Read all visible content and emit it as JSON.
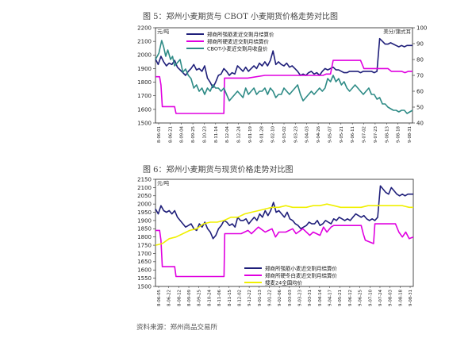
{
  "figure1": {
    "title": "图 5：郑州小麦期货与 CBOT 小麦期货价格走势对比图"
  },
  "figure2": {
    "title": "图 6：郑州小麦期货与现货价格走势对比图"
  },
  "source": "资料来源：郑州商品交易所",
  "chart_data": [
    {
      "type": "line",
      "title": "图 5：郑州小麦期货与 CBOT 小麦期货价格走势对比图",
      "y_unit": "元/吨",
      "y2_unit": "美分/蒲式耳",
      "ylim": [
        1500,
        2200
      ],
      "yticks": [
        1500,
        1600,
        1700,
        1800,
        1900,
        2000,
        2100,
        2200
      ],
      "y2lim": [
        40,
        100
      ],
      "y2ticks": [
        40,
        50,
        60,
        70,
        80,
        90,
        100
      ],
      "grid": false,
      "legend_position": "top-center",
      "x_labels": [
        "8-06-01",
        "8-06-21",
        "8-09-04",
        "8-09-25",
        "8-10-23",
        "8-11-14",
        "8-12-04",
        "8-12-24",
        "9-01-19",
        "9-01-28",
        "9-02-10",
        "9-03-02",
        "9-03-23",
        "9-04-03",
        "9-04-26",
        "9-05-07",
        "9-05-21",
        "9-06-11",
        "9-07-02",
        "9-07-23",
        "9-08-13",
        "9-08-18",
        "9-08-31"
      ],
      "series": [
        {
          "name": "郑商所强筋麦近交割月结算价",
          "axis": "left",
          "color": "#1f1f7a",
          "x": [
            0,
            4,
            8,
            12,
            16,
            20,
            24,
            28,
            32,
            36,
            40,
            44,
            48,
            52,
            56,
            60,
            64,
            68,
            72,
            76,
            80,
            84,
            88,
            92,
            96,
            100,
            104,
            108,
            112,
            116,
            120,
            124,
            128,
            132,
            136,
            140,
            144,
            148,
            152,
            156,
            160,
            164,
            168,
            172,
            176,
            180,
            184,
            188,
            192,
            196,
            200,
            204,
            208,
            212,
            216,
            220,
            224,
            228,
            232,
            236,
            240,
            244,
            248,
            252,
            256,
            260,
            264,
            268,
            272,
            276,
            280,
            284,
            288,
            292,
            296,
            300,
            304,
            308,
            312,
            316,
            320,
            324,
            328,
            332,
            336,
            340,
            344,
            348,
            352,
            356,
            360,
            364,
            368,
            372,
            376
          ],
          "values": [
            1970,
            1930,
            1990,
            1950,
            1920,
            1940,
            1930,
            1960,
            1910,
            1890,
            1870,
            1850,
            1880,
            1900,
            1930,
            1890,
            1900,
            1880,
            1920,
            1830,
            1800,
            1760,
            1800,
            1850,
            1860,
            1900,
            1880,
            1850,
            1870,
            1860,
            1920,
            1900,
            1880,
            1910,
            1880,
            1900,
            1920,
            1900,
            1940,
            1920,
            1950,
            1920,
            1960,
            2030,
            1930,
            1950,
            1930,
            1920,
            1940,
            1910,
            1920,
            1900,
            1880,
            1850,
            1860,
            1850,
            1870,
            1880,
            1860,
            1870,
            1850,
            1880,
            1900,
            1890,
            1900,
            1910,
            1890,
            1890,
            1880,
            1870,
            1870,
            1880,
            1880,
            1880,
            1880,
            1870,
            1880,
            1880,
            1880,
            1880,
            1870,
            1880,
            2120,
            2100,
            2080,
            2080,
            2090,
            2080,
            2070,
            2060,
            2070,
            2060,
            2070,
            2070,
            2070
          ]
        },
        {
          "name": "郑商所硬麦近交割月结算价",
          "axis": "left",
          "color": "#e000e0",
          "x": [
            0,
            6,
            8,
            10,
            14,
            28,
            30,
            45,
            60,
            75,
            90,
            100,
            101,
            115,
            125,
            130,
            135,
            160,
            175,
            190,
            205,
            215,
            225,
            230,
            240,
            245,
            250,
            256,
            260,
            270,
            285,
            290,
            300,
            305,
            310,
            320,
            340,
            345,
            350,
            355,
            360,
            365,
            370,
            376
          ],
          "values": [
            1840,
            1840,
            1780,
            1620,
            1620,
            1620,
            1570,
            1570,
            1570,
            1570,
            1570,
            1570,
            1830,
            1830,
            1830,
            1830,
            1830,
            1850,
            1850,
            1850,
            1850,
            1850,
            1850,
            1850,
            1850,
            1850,
            1860,
            1860,
            1960,
            1960,
            1960,
            1960,
            1960,
            1900,
            1900,
            1900,
            1900,
            1880,
            1880,
            1880,
            1880,
            1870,
            1880,
            1880
          ]
        },
        {
          "name": "CBOT小麦近交割月收盘价",
          "axis": "right",
          "color": "#2e8b86",
          "x": [
            0,
            5,
            9,
            12,
            15,
            18,
            22,
            25,
            28,
            32,
            36,
            40,
            44,
            48,
            52,
            56,
            60,
            64,
            68,
            72,
            76,
            80,
            84,
            88,
            92,
            96,
            100,
            104,
            108,
            112,
            116,
            120,
            124,
            128,
            132,
            136,
            140,
            144,
            148,
            152,
            156,
            160,
            164,
            168,
            172,
            176,
            180,
            184,
            188,
            192,
            196,
            200,
            204,
            208,
            212,
            216,
            220,
            224,
            228,
            232,
            236,
            240,
            244,
            248,
            252,
            256,
            260,
            264,
            268,
            272,
            276,
            280,
            284,
            288,
            292,
            296,
            300,
            304,
            308,
            312,
            316,
            320,
            324,
            328,
            332,
            336,
            340,
            344,
            348,
            352,
            356,
            360,
            364,
            368,
            372,
            376
          ],
          "values": [
            80,
            84,
            92,
            88,
            82,
            86,
            80,
            82,
            76,
            78,
            80,
            72,
            74,
            70,
            68,
            62,
            64,
            60,
            62,
            58,
            62,
            60,
            64,
            62,
            62,
            60,
            62,
            58,
            54,
            56,
            58,
            60,
            58,
            56,
            62,
            58,
            60,
            62,
            58,
            60,
            60,
            62,
            58,
            62,
            60,
            56,
            58,
            58,
            62,
            60,
            58,
            60,
            62,
            64,
            58,
            54,
            56,
            58,
            60,
            58,
            60,
            62,
            60,
            62,
            68,
            66,
            70,
            66,
            68,
            64,
            66,
            62,
            60,
            62,
            64,
            62,
            60,
            58,
            60,
            62,
            58,
            58,
            55,
            56,
            52,
            52,
            50,
            49,
            48,
            48,
            47,
            48,
            48,
            46,
            47,
            48
          ]
        }
      ]
    },
    {
      "type": "line",
      "title": "图 6：郑州小麦期货与现货价格走势对比图",
      "y_unit": "元/吨",
      "ylim": [
        1500,
        2150
      ],
      "yticks": [
        1500,
        1550,
        1600,
        1650,
        1700,
        1750,
        1800,
        1850,
        1900,
        1950,
        2000,
        2050,
        2100,
        2150
      ],
      "grid": false,
      "legend_position": "bottom-right",
      "x_labels": [
        "8-06-05",
        "8-06-22",
        "8-08-12",
        "8-09-09",
        "8-09-25",
        "8-10-24",
        "8-11-06",
        "8-11-15",
        "8-12-02",
        "9-12-22",
        "9-01-13",
        "9-01-22",
        "9-02-06",
        "9-03-03",
        "9-03-23",
        "9-03-31",
        "9-04-14",
        "9-04-17",
        "9-05-21",
        "9-06-12",
        "9-06-25",
        "9-07-10",
        "9-07-24",
        "9-08-03",
        "9-08-18",
        "9-08-31"
      ],
      "series": [
        {
          "name": "郑商所强筋小麦近交割月结算价",
          "color": "#1f1f7a",
          "x": [
            0,
            4,
            8,
            12,
            16,
            20,
            24,
            28,
            32,
            36,
            40,
            44,
            48,
            52,
            56,
            60,
            64,
            68,
            72,
            76,
            80,
            84,
            88,
            92,
            96,
            100,
            104,
            108,
            112,
            116,
            120,
            124,
            128,
            132,
            136,
            140,
            144,
            148,
            152,
            156,
            160,
            164,
            168,
            172,
            176,
            180,
            184,
            188,
            192,
            196,
            200,
            204,
            208,
            212,
            216,
            220,
            224,
            228,
            232,
            236,
            240,
            244,
            248,
            252,
            256,
            260,
            264,
            268,
            272,
            276,
            280,
            284,
            288,
            292,
            296,
            300,
            304,
            308,
            312,
            316,
            320,
            324,
            328,
            332,
            336,
            340,
            344,
            348,
            352,
            356,
            360,
            364,
            368,
            372,
            376
          ],
          "values": [
            1970,
            1940,
            1990,
            1960,
            1950,
            1960,
            1940,
            1960,
            1920,
            1900,
            1880,
            1860,
            1870,
            1880,
            1850,
            1840,
            1880,
            1860,
            1890,
            1850,
            1830,
            1790,
            1810,
            1850,
            1870,
            1900,
            1890,
            1870,
            1880,
            1860,
            1920,
            1900,
            1900,
            1910,
            1880,
            1900,
            1920,
            1900,
            1940,
            1920,
            1960,
            1930,
            1960,
            2010,
            1950,
            1960,
            1940,
            1920,
            1950,
            1910,
            1900,
            1880,
            1870,
            1850,
            1860,
            1870,
            1890,
            1880,
            1880,
            1900,
            1870,
            1880,
            1900,
            1890,
            1880,
            1910,
            1900,
            1920,
            1910,
            1900,
            1910,
            1900,
            1920,
            1940,
            1930,
            1920,
            1930,
            1910,
            1900,
            1910,
            1900,
            1920,
            2110,
            2090,
            2070,
            2060,
            2100,
            2080,
            2060,
            2050,
            2060,
            2050,
            2060,
            2060,
            2060
          ]
        },
        {
          "name": "郑商所硬冬白麦近交割月结算价",
          "color": "#e000e0",
          "x": [
            0,
            6,
            8,
            10,
            14,
            28,
            30,
            45,
            60,
            75,
            90,
            100,
            101,
            115,
            125,
            135,
            140,
            150,
            160,
            170,
            175,
            180,
            190,
            200,
            205,
            215,
            225,
            230,
            240,
            245,
            250,
            256,
            260,
            270,
            285,
            290,
            300,
            303,
            306,
            318,
            320,
            330,
            340,
            345,
            350,
            355,
            360,
            365,
            370,
            376
          ],
          "values": [
            1840,
            1840,
            1780,
            1620,
            1620,
            1620,
            1560,
            1560,
            1560,
            1560,
            1560,
            1560,
            1820,
            1820,
            1820,
            1840,
            1820,
            1860,
            1830,
            1850,
            1800,
            1830,
            1830,
            1850,
            1820,
            1850,
            1810,
            1830,
            1810,
            1860,
            1830,
            1860,
            1870,
            1870,
            1870,
            1870,
            1870,
            1820,
            1780,
            1760,
            1880,
            1880,
            1880,
            1880,
            1880,
            1830,
            1800,
            1830,
            1790,
            1800
          ]
        },
        {
          "name": "搜麦24全国均价",
          "color": "#f0f000",
          "x": [
            0,
            10,
            20,
            30,
            40,
            50,
            60,
            70,
            80,
            90,
            100,
            110,
            120,
            130,
            140,
            150,
            160,
            170,
            180,
            190,
            200,
            210,
            220,
            230,
            240,
            250,
            260,
            270,
            280,
            290,
            300,
            310,
            320,
            330,
            340,
            350,
            360,
            370,
            376
          ],
          "values": [
            1750,
            1760,
            1790,
            1800,
            1820,
            1840,
            1850,
            1880,
            1890,
            1890,
            1900,
            1920,
            1920,
            1940,
            1950,
            1960,
            1970,
            1980,
            1980,
            1990,
            1980,
            1980,
            1980,
            1990,
            1990,
            2000,
            1990,
            1980,
            1980,
            1980,
            1980,
            1990,
            1990,
            1990,
            1990,
            1990,
            1990,
            1980,
            1980
          ]
        }
      ]
    }
  ]
}
